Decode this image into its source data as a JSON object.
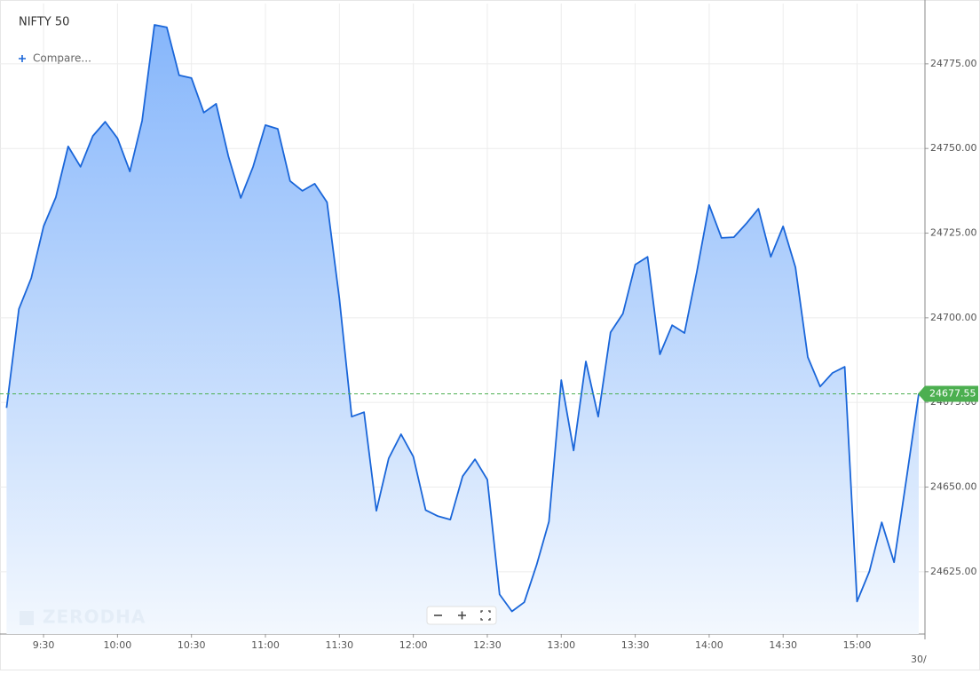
{
  "chart_data": {
    "type": "area",
    "title": "NIFTY 50",
    "compare_button": "Compare...",
    "watermark": "ZERODHA",
    "date_label": "30/",
    "color": "#1a66d9",
    "grid": true,
    "categories": [
      null,
      null,
      null,
      "9:30",
      null,
      null,
      null,
      null,
      null,
      "10:00",
      null,
      null,
      null,
      null,
      null,
      "10:30",
      null,
      null,
      null,
      null,
      null,
      "11:00",
      null,
      null,
      null,
      null,
      null,
      "11:30",
      null,
      null,
      null,
      null,
      null,
      "12:00",
      null,
      null,
      null,
      null,
      null,
      "12:30",
      null,
      null,
      null,
      null,
      null,
      "13:00",
      null,
      null,
      null,
      null,
      null,
      "13:30",
      null,
      null,
      null,
      null,
      null,
      "14:00",
      null,
      null,
      null,
      null,
      null,
      "14:30",
      null,
      null,
      null,
      null,
      null,
      "15:00",
      null,
      null,
      null,
      null,
      null
    ],
    "values": [
      24673.4,
      24702.6,
      24711.7,
      24727.0,
      24735.6,
      24750.6,
      24744.6,
      24753.7,
      24757.9,
      24753.0,
      24743.2,
      24758.2,
      24786.5,
      24785.8,
      24771.6,
      24770.8,
      24760.6,
      24763.2,
      24747.7,
      24735.4,
      24744.6,
      24756.9,
      24755.8,
      24740.4,
      24737.5,
      24739.6,
      24734.1,
      24705.7,
      24670.8,
      24672.1,
      24643.0,
      24658.5,
      24665.6,
      24659.0,
      24643.2,
      24641.4,
      24640.4,
      24653.2,
      24658.2,
      24652.2,
      24618.3,
      24613.3,
      24616.0,
      24627.0,
      24639.8,
      24681.6,
      24660.8,
      24687.1,
      24670.8,
      24695.7,
      24701.2,
      24715.7,
      24718.0,
      24689.2,
      24697.8,
      24695.5,
      24713.6,
      24733.3,
      24723.6,
      24723.8,
      24727.8,
      24732.2,
      24718.0,
      24727.0,
      24714.9,
      24688.4,
      24679.7,
      24683.7,
      24685.5,
      24616.2,
      24625.1,
      24639.6,
      24627.8,
      24652.4,
      24677.55
    ],
    "last_price": 24677.55,
    "last_price_color": "#4caf50",
    "ylim": [
      24606.6,
      24792.8
    ],
    "yticks": [
      {
        "value": 24625,
        "label": "24625.00"
      },
      {
        "value": 24650,
        "label": "24650.00"
      },
      {
        "value": 24675,
        "label": "24675.00"
      },
      {
        "value": 24700,
        "label": "24700.00"
      },
      {
        "value": 24725,
        "label": "24725.00"
      },
      {
        "value": 24750,
        "label": "24750.00"
      },
      {
        "value": 24775,
        "label": "24775.00"
      }
    ]
  }
}
